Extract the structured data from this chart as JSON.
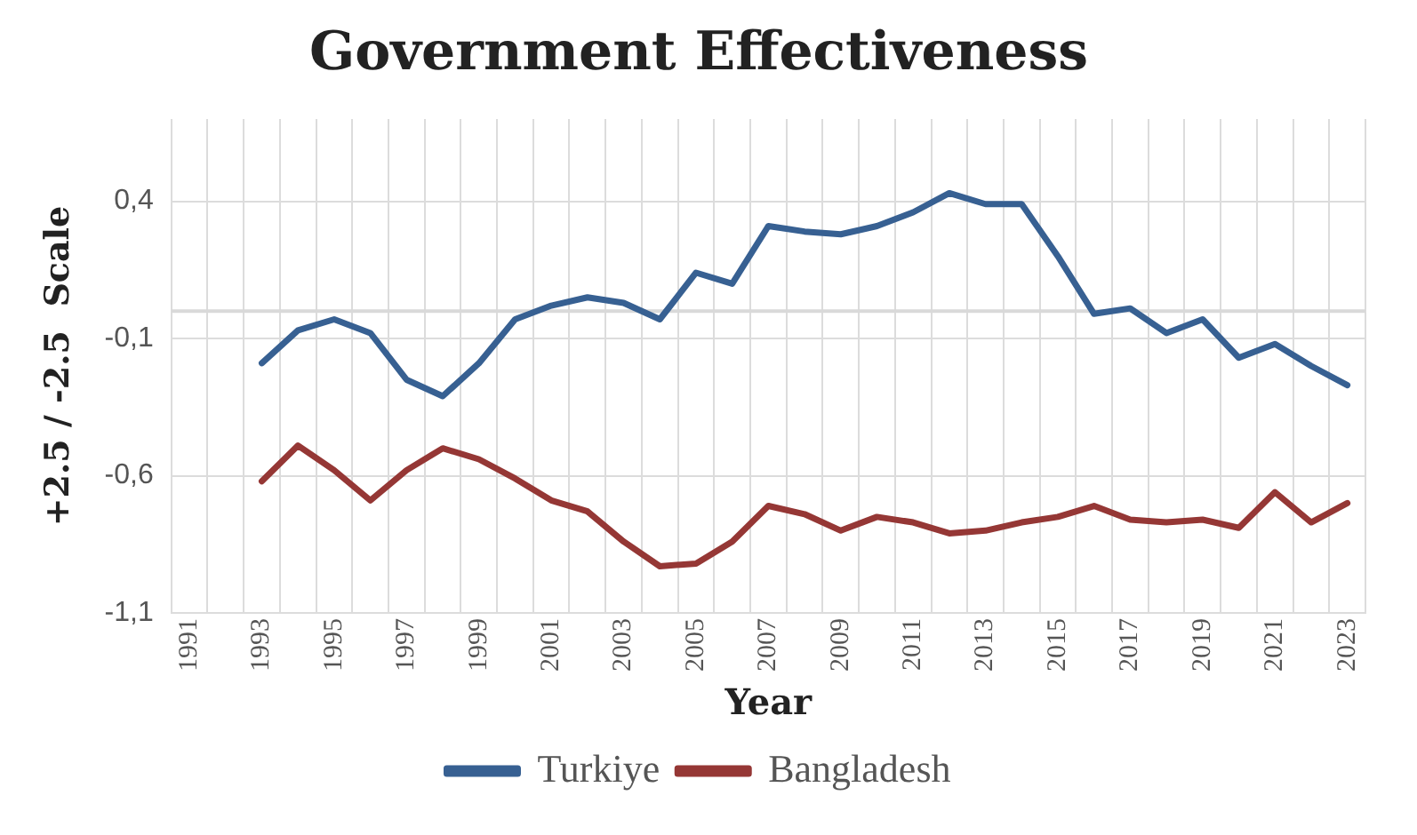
{
  "chart_data": {
    "type": "line",
    "title": "Government Effectiveness",
    "xlabel": "Year",
    "ylabel": "+2.5 / -2.5  Scale",
    "categories": [
      "1991",
      null,
      "1993",
      null,
      "1995",
      null,
      "1997",
      null,
      "1999",
      null,
      "2001",
      null,
      "2003",
      null,
      "2005",
      null,
      "2007",
      null,
      "2009",
      null,
      "2011",
      null,
      "2013",
      null,
      "2015",
      null,
      "2017",
      null,
      "2019",
      null,
      "2021",
      null,
      "2023"
    ],
    "series": [
      {
        "name": "Turkiye",
        "color": "#376092",
        "values": [
          null,
          null,
          -0.19,
          -0.07,
          -0.03,
          -0.08,
          -0.25,
          -0.31,
          -0.19,
          -0.03,
          0.02,
          0.05,
          0.03,
          -0.03,
          0.14,
          0.1,
          0.31,
          0.29,
          0.28,
          0.31,
          0.36,
          0.43,
          0.39,
          0.39,
          0.2,
          -0.01,
          0.01,
          -0.08,
          -0.03,
          -0.17,
          -0.12,
          -0.2,
          -0.27
        ]
      },
      {
        "name": "Bangladesh",
        "color": "#953735",
        "values": [
          null,
          null,
          -0.62,
          -0.49,
          -0.58,
          -0.69,
          -0.58,
          -0.5,
          -0.54,
          -0.61,
          -0.69,
          -0.73,
          -0.84,
          -0.93,
          -0.92,
          -0.84,
          -0.71,
          -0.74,
          -0.8,
          -0.75,
          -0.77,
          -0.81,
          -0.8,
          -0.77,
          -0.75,
          -0.71,
          -0.76,
          -0.77,
          -0.76,
          -0.79,
          -0.66,
          -0.77,
          -0.7
        ]
      }
    ],
    "ylim": [
      -1.1,
      0.7
    ],
    "yticks": [
      {
        "value": -1.1,
        "label": "-1,1"
      },
      {
        "value": -0.6,
        "label": "-0,6"
      },
      {
        "value": -0.1,
        "label": "-0,1"
      },
      {
        "value": 0.4,
        "label": "0,4"
      }
    ],
    "ref_lines": [
      {
        "axis": "y",
        "value": 0,
        "color": "#d9d9d9"
      }
    ],
    "grid": true,
    "legend": "bottom",
    "marker": "none",
    "line_style": "solid"
  }
}
